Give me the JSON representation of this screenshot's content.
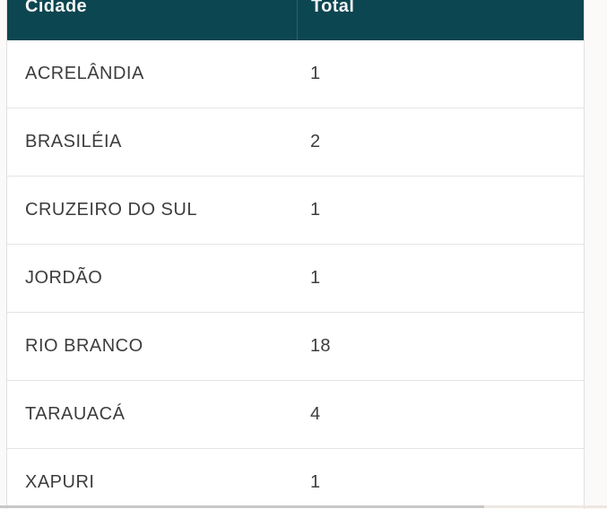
{
  "table": {
    "columns": {
      "city": {
        "label": "Cidade"
      },
      "total": {
        "label": "Total"
      }
    },
    "rows": [
      {
        "city": "ACRELÂNDIA",
        "total": "1"
      },
      {
        "city": "BRASILÉIA",
        "total": "2"
      },
      {
        "city": "CRUZEIRO DO SUL",
        "total": "1"
      },
      {
        "city": "JORDÃO",
        "total": "1"
      },
      {
        "city": "RIO BRANCO",
        "total": "18"
      },
      {
        "city": "TARAUACÁ",
        "total": "4"
      },
      {
        "city": "XAPURI",
        "total": "1"
      }
    ]
  },
  "colors": {
    "header_bg": "#0c4651",
    "header_text": "#f4f4f4",
    "row_text": "#3d3d3d",
    "row_border": "#e4e4e4",
    "scrollbar_thumb": "#c7c7c7",
    "scrollbar_track": "#eee7e1"
  }
}
